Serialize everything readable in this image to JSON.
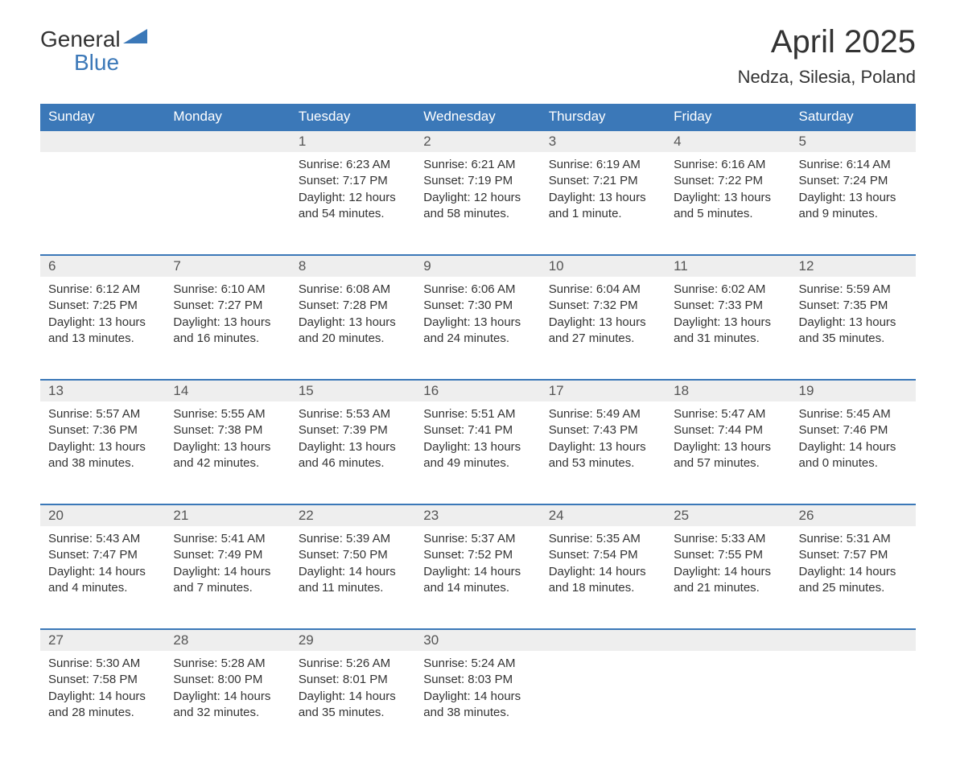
{
  "logo": {
    "text1": "General",
    "text2": "Blue",
    "accent_color": "#3b78b8"
  },
  "title": "April 2025",
  "location": "Nedza, Silesia, Poland",
  "header_bg": "#3b78b8",
  "header_fg": "#ffffff",
  "daynum_bg": "#eeeeee",
  "border_color": "#3b78b8",
  "weekdays": [
    "Sunday",
    "Monday",
    "Tuesday",
    "Wednesday",
    "Thursday",
    "Friday",
    "Saturday"
  ],
  "weeks": [
    [
      null,
      null,
      {
        "n": "1",
        "sunrise": "6:23 AM",
        "sunset": "7:17 PM",
        "daylight": "12 hours and 54 minutes."
      },
      {
        "n": "2",
        "sunrise": "6:21 AM",
        "sunset": "7:19 PM",
        "daylight": "12 hours and 58 minutes."
      },
      {
        "n": "3",
        "sunrise": "6:19 AM",
        "sunset": "7:21 PM",
        "daylight": "13 hours and 1 minute."
      },
      {
        "n": "4",
        "sunrise": "6:16 AM",
        "sunset": "7:22 PM",
        "daylight": "13 hours and 5 minutes."
      },
      {
        "n": "5",
        "sunrise": "6:14 AM",
        "sunset": "7:24 PM",
        "daylight": "13 hours and 9 minutes."
      }
    ],
    [
      {
        "n": "6",
        "sunrise": "6:12 AM",
        "sunset": "7:25 PM",
        "daylight": "13 hours and 13 minutes."
      },
      {
        "n": "7",
        "sunrise": "6:10 AM",
        "sunset": "7:27 PM",
        "daylight": "13 hours and 16 minutes."
      },
      {
        "n": "8",
        "sunrise": "6:08 AM",
        "sunset": "7:28 PM",
        "daylight": "13 hours and 20 minutes."
      },
      {
        "n": "9",
        "sunrise": "6:06 AM",
        "sunset": "7:30 PM",
        "daylight": "13 hours and 24 minutes."
      },
      {
        "n": "10",
        "sunrise": "6:04 AM",
        "sunset": "7:32 PM",
        "daylight": "13 hours and 27 minutes."
      },
      {
        "n": "11",
        "sunrise": "6:02 AM",
        "sunset": "7:33 PM",
        "daylight": "13 hours and 31 minutes."
      },
      {
        "n": "12",
        "sunrise": "5:59 AM",
        "sunset": "7:35 PM",
        "daylight": "13 hours and 35 minutes."
      }
    ],
    [
      {
        "n": "13",
        "sunrise": "5:57 AM",
        "sunset": "7:36 PM",
        "daylight": "13 hours and 38 minutes."
      },
      {
        "n": "14",
        "sunrise": "5:55 AM",
        "sunset": "7:38 PM",
        "daylight": "13 hours and 42 minutes."
      },
      {
        "n": "15",
        "sunrise": "5:53 AM",
        "sunset": "7:39 PM",
        "daylight": "13 hours and 46 minutes."
      },
      {
        "n": "16",
        "sunrise": "5:51 AM",
        "sunset": "7:41 PM",
        "daylight": "13 hours and 49 minutes."
      },
      {
        "n": "17",
        "sunrise": "5:49 AM",
        "sunset": "7:43 PM",
        "daylight": "13 hours and 53 minutes."
      },
      {
        "n": "18",
        "sunrise": "5:47 AM",
        "sunset": "7:44 PM",
        "daylight": "13 hours and 57 minutes."
      },
      {
        "n": "19",
        "sunrise": "5:45 AM",
        "sunset": "7:46 PM",
        "daylight": "14 hours and 0 minutes."
      }
    ],
    [
      {
        "n": "20",
        "sunrise": "5:43 AM",
        "sunset": "7:47 PM",
        "daylight": "14 hours and 4 minutes."
      },
      {
        "n": "21",
        "sunrise": "5:41 AM",
        "sunset": "7:49 PM",
        "daylight": "14 hours and 7 minutes."
      },
      {
        "n": "22",
        "sunrise": "5:39 AM",
        "sunset": "7:50 PM",
        "daylight": "14 hours and 11 minutes."
      },
      {
        "n": "23",
        "sunrise": "5:37 AM",
        "sunset": "7:52 PM",
        "daylight": "14 hours and 14 minutes."
      },
      {
        "n": "24",
        "sunrise": "5:35 AM",
        "sunset": "7:54 PM",
        "daylight": "14 hours and 18 minutes."
      },
      {
        "n": "25",
        "sunrise": "5:33 AM",
        "sunset": "7:55 PM",
        "daylight": "14 hours and 21 minutes."
      },
      {
        "n": "26",
        "sunrise": "5:31 AM",
        "sunset": "7:57 PM",
        "daylight": "14 hours and 25 minutes."
      }
    ],
    [
      {
        "n": "27",
        "sunrise": "5:30 AM",
        "sunset": "7:58 PM",
        "daylight": "14 hours and 28 minutes."
      },
      {
        "n": "28",
        "sunrise": "5:28 AM",
        "sunset": "8:00 PM",
        "daylight": "14 hours and 32 minutes."
      },
      {
        "n": "29",
        "sunrise": "5:26 AM",
        "sunset": "8:01 PM",
        "daylight": "14 hours and 35 minutes."
      },
      {
        "n": "30",
        "sunrise": "5:24 AM",
        "sunset": "8:03 PM",
        "daylight": "14 hours and 38 minutes."
      },
      null,
      null,
      null
    ]
  ],
  "labels": {
    "sunrise": "Sunrise: ",
    "sunset": "Sunset: ",
    "daylight": "Daylight: "
  }
}
